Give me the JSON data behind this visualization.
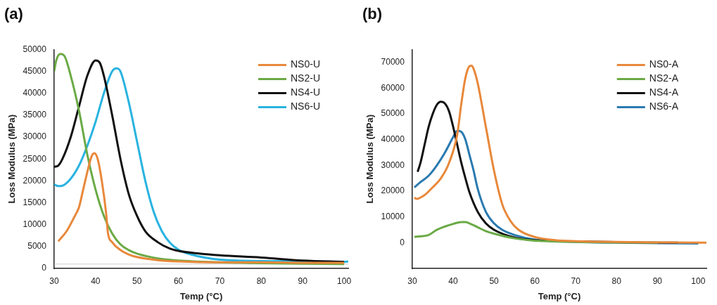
{
  "chart_data": [
    {
      "type": "line",
      "title": "(a)",
      "xlabel": "Temp (°C)",
      "ylabel": "Loss Modulus (MPa)",
      "xlim": [
        30,
        101
      ],
      "xticks": [
        30,
        40,
        50,
        60,
        70,
        80,
        90,
        100
      ],
      "ylim": [
        0,
        50000
      ],
      "yticks": [
        0,
        5000,
        10000,
        15000,
        20000,
        25000,
        30000,
        35000,
        40000,
        45000,
        50000
      ],
      "legend": "top right",
      "grid": false,
      "marker": "none",
      "line_style": "solid",
      "ref_lines": [
        {
          "axis": "y",
          "value": 1000,
          "color": "#d0d0d0"
        }
      ],
      "series": [
        {
          "name": "NS0-U",
          "color": "#e8883a",
          "x": [
            31,
            33,
            35,
            36,
            37,
            38,
            39,
            39.7,
            40.5,
            41.5,
            42.5,
            43,
            44,
            46,
            48,
            50,
            55,
            60,
            70,
            80,
            90,
            100
          ],
          "values": [
            6200,
            8500,
            12000,
            14000,
            18000,
            22000,
            25500,
            26300,
            25000,
            20000,
            13000,
            8000,
            6000,
            4200,
            3200,
            2600,
            1900,
            1600,
            1400,
            1400,
            1300,
            1300
          ]
        },
        {
          "name": "NS2-U",
          "color": "#6aaa45",
          "x": [
            30,
            30.5,
            31.5,
            32.5,
            34,
            36,
            38,
            40,
            42,
            44,
            46,
            48,
            50,
            55,
            60,
            70,
            80,
            90,
            100
          ],
          "values": [
            45000,
            47500,
            49000,
            48500,
            44000,
            36000,
            26000,
            18000,
            12000,
            8000,
            5500,
            4200,
            3400,
            2300,
            1800,
            1400,
            1200,
            1100,
            1000
          ]
        },
        {
          "name": "NS4-U",
          "color": "#111111",
          "x": [
            30,
            31,
            32,
            34,
            36,
            38,
            40,
            41,
            42,
            44,
            46,
            48,
            50,
            52,
            55,
            58,
            60,
            65,
            70,
            80,
            90,
            100
          ],
          "values": [
            23200,
            23500,
            25000,
            30000,
            37000,
            44000,
            47500,
            47000,
            44000,
            35000,
            25000,
            17000,
            12000,
            8500,
            6000,
            4500,
            4000,
            3400,
            3000,
            2500,
            1800,
            1500
          ]
        },
        {
          "name": "NS6-U",
          "color": "#29b3e0",
          "x": [
            30,
            31,
            32,
            34,
            36,
            38,
            40,
            42,
            44,
            45,
            46,
            48,
            50,
            52,
            54,
            56,
            58,
            60,
            63,
            70,
            80,
            90,
            100,
            101
          ],
          "values": [
            19200,
            18800,
            18900,
            20500,
            23500,
            28000,
            33500,
            40000,
            45000,
            45700,
            45000,
            38000,
            29000,
            20000,
            13000,
            8500,
            5800,
            4300,
            3200,
            2000,
            1700,
            1600,
            1500,
            1600
          ]
        }
      ]
    },
    {
      "type": "line",
      "title": "(b)",
      "xlabel": "Temp (°C)",
      "ylabel": "Loss Modulus (MPa)",
      "xlim": [
        30,
        102
      ],
      "xticks": [
        30,
        40,
        50,
        60,
        70,
        80,
        90,
        100
      ],
      "ylim": [
        -10000,
        75000
      ],
      "yticks": [
        0,
        10000,
        20000,
        30000,
        40000,
        50000,
        60000,
        70000
      ],
      "legend": "top right",
      "grid": false,
      "marker": "none",
      "line_style": "solid",
      "series": [
        {
          "name": "NS0-A",
          "color": "#e8883a",
          "x": [
            30.5,
            31,
            33,
            35,
            37,
            39,
            41,
            42,
            43,
            44,
            44.5,
            45,
            46,
            48,
            50,
            52,
            54,
            56,
            60,
            65,
            70,
            80,
            90,
            100,
            102
          ],
          "values": [
            17500,
            17000,
            18500,
            21500,
            25000,
            31000,
            42000,
            54000,
            64000,
            68500,
            68700,
            67500,
            62000,
            45000,
            28000,
            15000,
            8500,
            5000,
            2200,
            1000,
            600,
            300,
            100,
            0,
            0
          ]
        },
        {
          "name": "NS2-A",
          "color": "#6aaa45",
          "x": [
            30.5,
            32,
            34,
            36,
            38,
            40,
            42,
            43,
            44,
            46,
            48,
            50,
            55,
            60,
            70,
            80,
            90
          ],
          "values": [
            2300,
            2500,
            3000,
            5000,
            6300,
            7300,
            8000,
            8000,
            7500,
            6000,
            4500,
            3500,
            1700,
            800,
            300,
            100,
            0
          ]
        },
        {
          "name": "NS4-A",
          "color": "#111111",
          "x": [
            31.3,
            32,
            33,
            34,
            35,
            36,
            37,
            38,
            39,
            40,
            41,
            42,
            43,
            44,
            46,
            48,
            50,
            55,
            60,
            70,
            80,
            90,
            95
          ],
          "values": [
            27500,
            31000,
            38000,
            45000,
            50000,
            53500,
            54700,
            54000,
            51000,
            45000,
            38000,
            31000,
            25000,
            19500,
            12000,
            7500,
            5000,
            2000,
            1000,
            500,
            200,
            0,
            0
          ]
        },
        {
          "name": "NS6-A",
          "color": "#2a7ab0",
          "x": [
            30.5,
            32,
            34,
            36,
            38,
            40,
            41,
            42,
            43,
            44,
            45,
            46,
            48,
            50,
            52,
            55,
            60,
            70,
            80,
            90,
            100
          ],
          "values": [
            21500,
            23500,
            26000,
            30000,
            35000,
            41000,
            43500,
            43000,
            40000,
            34000,
            28000,
            21000,
            12000,
            7500,
            5000,
            3000,
            1200,
            300,
            0,
            -200,
            -300
          ]
        }
      ]
    }
  ]
}
